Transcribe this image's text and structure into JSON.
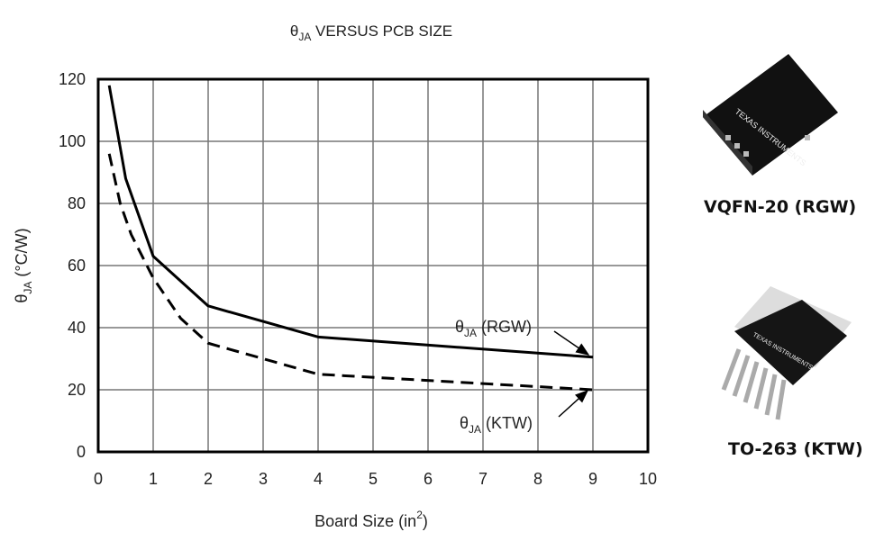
{
  "chart_data": {
    "type": "line",
    "title": "θJA VERSUS PCB SIZE",
    "title_parts": {
      "symbol": "θ",
      "sub": "JA",
      "rest": " VERSUS PCB SIZE"
    },
    "xlabel": "Board Size (in²)",
    "xlabel_parts": {
      "main": "Board Size (in",
      "sup": "2",
      "close": ")"
    },
    "ylabel": "θJA (°C/W)",
    "ylabel_parts": {
      "symbol": "θ",
      "sub": "JA",
      "rest": " (°C/W)"
    },
    "xlim": [
      0,
      10
    ],
    "ylim": [
      0,
      120
    ],
    "xticks": [
      "0",
      "1",
      "2",
      "3",
      "4",
      "5",
      "6",
      "7",
      "8",
      "9",
      "10"
    ],
    "yticks": [
      "0",
      "20",
      "40",
      "60",
      "80",
      "100",
      "120"
    ],
    "grid": true,
    "series": [
      {
        "name": "θJA (RGW)",
        "label_parts": {
          "symbol": "θ",
          "sub": "JA",
          "rest": " (RGW)"
        },
        "style": "solid",
        "x": [
          0.2,
          0.5,
          1,
          2,
          4,
          9
        ],
        "y": [
          118,
          88,
          63,
          47,
          37,
          30.5
        ]
      },
      {
        "name": "θJA (KTW)",
        "label_parts": {
          "symbol": "θ",
          "sub": "JA",
          "rest": " (KTW)"
        },
        "style": "dashed",
        "x": [
          0.2,
          0.4,
          0.6,
          1,
          1.5,
          2,
          4,
          9
        ],
        "y": [
          96,
          80,
          70,
          56,
          43,
          35,
          25,
          20
        ]
      }
    ]
  },
  "packages": [
    {
      "name": "VQFN-20 (RGW)",
      "logo_text": "TEXAS INSTRUMENTS"
    },
    {
      "name": "TO-263 (KTW)",
      "logo_text": "TEXAS INSTRUMENTS"
    }
  ]
}
